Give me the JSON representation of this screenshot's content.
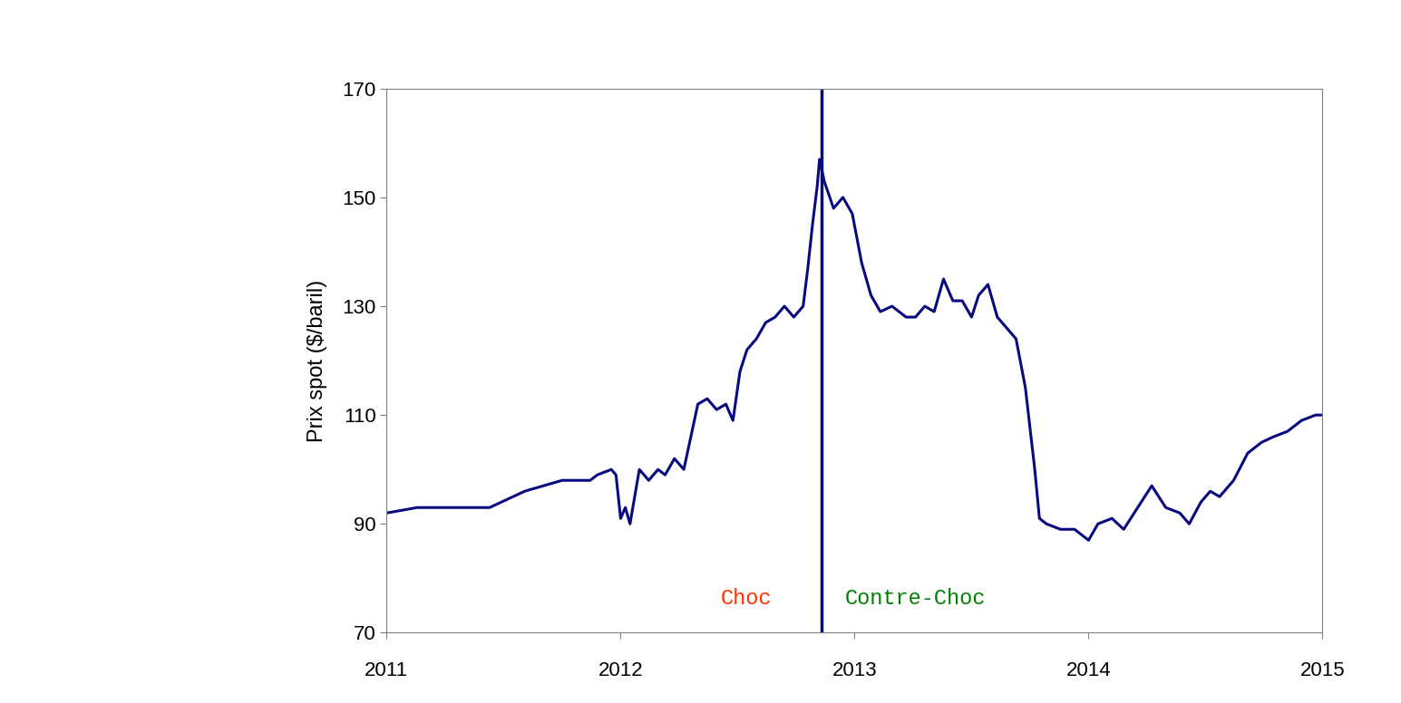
{
  "chart_data": {
    "type": "line",
    "y_label": "Prix spot ($/baril)",
    "x": [
      2011.0,
      2011.13,
      2011.28,
      2011.44,
      2011.59,
      2011.75,
      2011.87,
      2011.9,
      2011.96,
      2011.98,
      2012.0,
      2012.02,
      2012.04,
      2012.08,
      2012.12,
      2012.16,
      2012.19,
      2012.23,
      2012.27,
      2012.3,
      2012.33,
      2012.37,
      2012.41,
      2012.45,
      2012.48,
      2012.51,
      2012.54,
      2012.58,
      2012.62,
      2012.66,
      2012.7,
      2012.74,
      2012.78,
      2012.8,
      2012.82,
      2012.84,
      2012.85,
      2012.87,
      2012.91,
      2012.95,
      2012.99,
      2013.03,
      2013.07,
      2013.11,
      2013.16,
      2013.22,
      2013.26,
      2013.3,
      2013.34,
      2013.38,
      2013.42,
      2013.46,
      2013.5,
      2013.53,
      2013.57,
      2013.61,
      2013.65,
      2013.69,
      2013.73,
      2013.77,
      2013.79,
      2013.82,
      2013.88,
      2013.94,
      2014.0,
      2014.04,
      2014.1,
      2014.15,
      2014.21,
      2014.27,
      2014.33,
      2014.39,
      2014.43,
      2014.48,
      2014.52,
      2014.56,
      2014.62,
      2014.68,
      2014.74,
      2014.79,
      2014.85,
      2014.91,
      2014.97,
      2015.0
    ],
    "series": [
      {
        "color": "#0a0a80",
        "values": [
          92,
          93,
          93,
          93,
          96,
          98,
          98,
          99,
          100,
          99,
          91,
          93,
          90,
          100,
          98,
          100,
          99,
          102,
          100,
          106,
          112,
          113,
          111,
          112,
          109,
          118,
          122,
          124,
          127,
          128,
          130,
          128,
          130,
          137,
          145,
          152,
          157,
          153,
          148,
          150,
          147,
          138,
          132,
          129,
          130,
          128,
          128,
          130,
          129,
          135,
          131,
          131,
          128,
          132,
          134,
          128,
          126,
          124,
          115,
          100,
          91,
          90,
          89,
          89,
          87,
          90,
          91,
          89,
          93,
          97,
          93,
          92,
          90,
          94,
          96,
          95,
          98,
          103,
          105,
          106,
          107,
          109,
          110,
          110
        ]
      }
    ],
    "vline": 2012.86,
    "annotations": [
      {
        "text": "Choc",
        "color": "#ff3300"
      },
      {
        "text": "Contre-Choc",
        "color": "#008000"
      }
    ],
    "xlim": [
      2011,
      2015
    ],
    "xticks": [
      2011,
      2012,
      2013,
      2014,
      2015
    ],
    "ylim": [
      70,
      170
    ],
    "yticks": [
      70,
      90,
      110,
      130,
      150,
      170
    ],
    "grid": false
  }
}
